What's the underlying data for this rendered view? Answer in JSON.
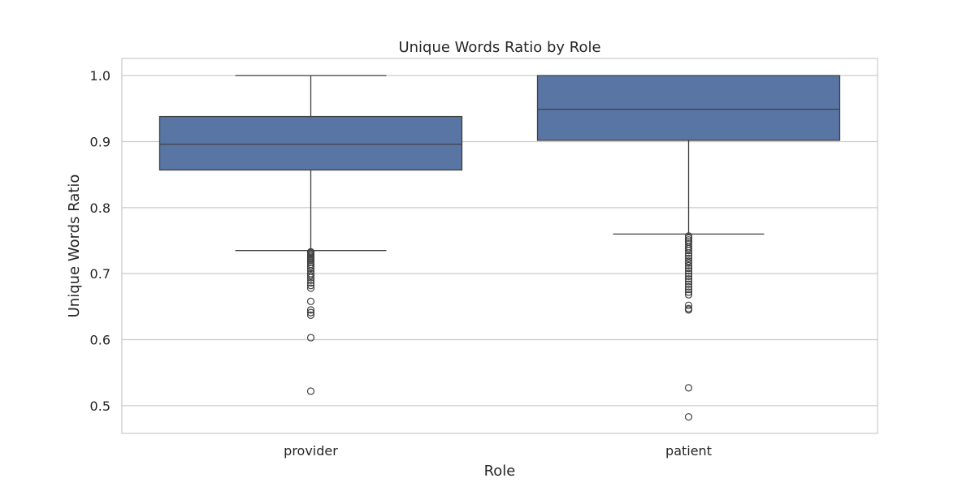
{
  "chart_data": {
    "type": "box",
    "title": "Unique Words Ratio by Role",
    "xlabel": "Role",
    "ylabel": "Unique Words Ratio",
    "ylim": [
      0.458,
      1.026
    ],
    "yticks": [
      "0.5",
      "0.6",
      "0.7",
      "0.8",
      "0.9",
      "1.0"
    ],
    "grid": true,
    "box_color": "#5875a4",
    "line_color": "#404040",
    "grid_color": "#cccccc",
    "categories": [
      "provider",
      "patient"
    ],
    "boxes": [
      {
        "category": "provider",
        "whisker_low": 0.735,
        "q1": 0.857,
        "median": 0.896,
        "q3": 0.938,
        "whisker_high": 1.0,
        "outliers": [
          0.733,
          0.732,
          0.73,
          0.728,
          0.726,
          0.724,
          0.722,
          0.72,
          0.717,
          0.714,
          0.711,
          0.708,
          0.704,
          0.7,
          0.697,
          0.694,
          0.69,
          0.686,
          0.682,
          0.678,
          0.658,
          0.645,
          0.641,
          0.637,
          0.603,
          0.522
        ]
      },
      {
        "category": "patient",
        "whisker_low": 0.76,
        "q1": 0.902,
        "median": 0.949,
        "q3": 1.0,
        "whisker_high": 1.0,
        "outliers": [
          0.757,
          0.754,
          0.751,
          0.748,
          0.745,
          0.741,
          0.738,
          0.735,
          0.731,
          0.727,
          0.723,
          0.719,
          0.716,
          0.712,
          0.708,
          0.704,
          0.7,
          0.696,
          0.692,
          0.688,
          0.684,
          0.68,
          0.676,
          0.672,
          0.668,
          0.652,
          0.647,
          0.645,
          0.527,
          0.483
        ]
      }
    ]
  }
}
